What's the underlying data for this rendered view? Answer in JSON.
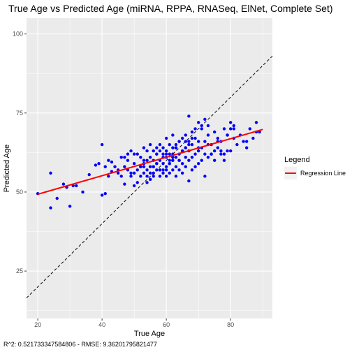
{
  "chart_data": {
    "type": "scatter",
    "title": "True Age vs Predicted Age (miRNA, RPPA, RNASeq, ElNet, Complete Set)",
    "xlabel": "True Age",
    "ylabel": "Predicted Age",
    "xlim": [
      16.5,
      93
    ],
    "ylim": [
      10,
      105
    ],
    "xticks": [
      20,
      40,
      60,
      80
    ],
    "yticks": [
      25,
      50,
      75,
      100
    ],
    "grid": true,
    "legend_title": "Legend",
    "legend_position": "right",
    "caption": "R^2: 0.521733347584806 - RMSE: 9.36201795821477",
    "colors": {
      "points": "#0000ff",
      "regression": "#ff0000",
      "identity": "#000000",
      "panel": "#ebebeb",
      "grid": "#ffffff"
    },
    "series": [
      {
        "name": "Regression Line",
        "type": "line",
        "x": [
          20,
          90
        ],
        "y": [
          49.3,
          69.8
        ]
      },
      {
        "type": "line",
        "style": "dashed",
        "x": [
          16.5,
          93
        ],
        "y": [
          16.5,
          93
        ]
      },
      {
        "type": "scatter",
        "x": [
          20,
          24,
          24,
          26,
          28,
          29,
          30,
          31,
          32,
          34,
          36,
          38,
          39,
          40,
          40,
          41,
          41,
          42,
          42,
          43,
          43,
          44,
          45,
          45,
          46,
          46,
          47,
          47,
          48,
          48,
          48,
          49,
          49,
          50,
          50,
          50,
          51,
          51,
          51,
          52,
          52,
          52,
          53,
          53,
          53,
          53,
          54,
          54,
          54,
          54,
          55,
          55,
          55,
          55,
          56,
          56,
          56,
          56,
          57,
          57,
          57,
          57,
          58,
          58,
          58,
          58,
          59,
          59,
          59,
          59,
          60,
          60,
          60,
          60,
          60,
          61,
          61,
          61,
          61,
          62,
          62,
          62,
          62,
          62,
          63,
          63,
          63,
          63,
          64,
          64,
          64,
          64,
          65,
          65,
          65,
          65,
          66,
          66,
          66,
          66,
          67,
          67,
          67,
          67,
          68,
          68,
          68,
          69,
          69,
          69,
          70,
          70,
          70,
          71,
          71,
          71,
          72,
          72,
          72,
          73,
          73,
          74,
          74,
          75,
          75,
          76,
          76,
          77,
          77,
          78,
          78,
          79,
          79,
          80,
          80,
          81,
          81,
          82,
          83,
          84,
          85,
          86,
          87,
          88,
          88,
          89,
          52,
          55,
          57,
          59,
          61,
          63,
          47,
          49,
          50,
          53,
          56,
          58,
          62,
          64,
          66,
          60,
          57,
          58,
          63,
          65,
          55,
          54,
          61,
          67,
          59,
          56,
          62,
          68,
          65,
          71,
          73,
          66,
          60,
          64,
          70,
          69,
          72,
          74,
          68,
          67,
          75,
          77,
          70,
          73,
          76,
          79,
          81,
          78,
          80,
          85
        ],
        "y": [
          49.5,
          45,
          56,
          48,
          52.5,
          51.5,
          45.5,
          52,
          52,
          50,
          55.5,
          58.5,
          59,
          49,
          65,
          49.5,
          58,
          55,
          60,
          56.5,
          59.5,
          58,
          56,
          57,
          55,
          61,
          52.5,
          58,
          57,
          60,
          62,
          55,
          63,
          52,
          56,
          59,
          53,
          57,
          62,
          55,
          58,
          61,
          56,
          58,
          60,
          64,
          55,
          57,
          60,
          63,
          56,
          58,
          61,
          65,
          55,
          58,
          60,
          63,
          57,
          59,
          62,
          64,
          57,
          60,
          63,
          65,
          56,
          59,
          61,
          64,
          55,
          58,
          61,
          63,
          67,
          56,
          59,
          62,
          65,
          57,
          60,
          62,
          64,
          68,
          55,
          58,
          61,
          64,
          57,
          60,
          62,
          66,
          56,
          59,
          63,
          67,
          58,
          61,
          64,
          66,
          53.5,
          60,
          63,
          74,
          57,
          61,
          65,
          58,
          62,
          67,
          59,
          63,
          66,
          60,
          64,
          70,
          55,
          62,
          66,
          61,
          68,
          62,
          65,
          63,
          69,
          64,
          67,
          62,
          66,
          60,
          70,
          63,
          68,
          63,
          72,
          67,
          70,
          65,
          68,
          66,
          64,
          70,
          67,
          69,
          72,
          69,
          58,
          54,
          62,
          57,
          60,
          64,
          61,
          56,
          62,
          59,
          56,
          55,
          61,
          60,
          64,
          62,
          59,
          57,
          65,
          63,
          54,
          53,
          59,
          66,
          62,
          58,
          60,
          69,
          63,
          71,
          65,
          68,
          57,
          66,
          72,
          70,
          73,
          62,
          67,
          65,
          60,
          63,
          64,
          71,
          66,
          68,
          71,
          62,
          70,
          66
        ]
      }
    ]
  }
}
